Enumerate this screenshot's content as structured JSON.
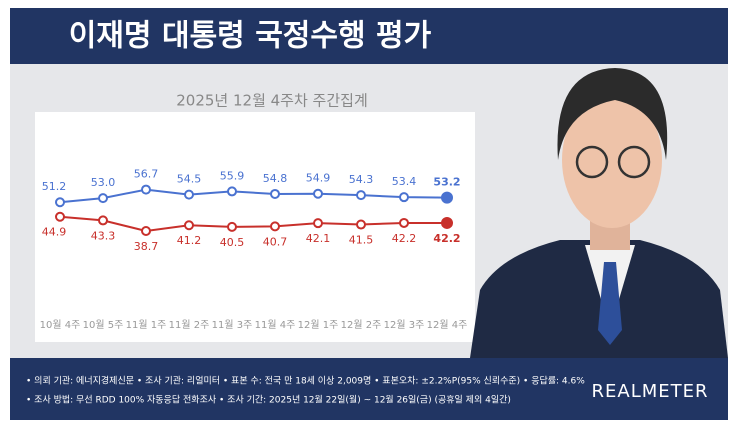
{
  "chart_data": {
    "type": "line",
    "title": "이재명 대통령 국정수행 평가",
    "subtitle": "2025년 12월 4주차 주간집계",
    "categories": [
      "10월 4주",
      "10월 5주",
      "11월 1주",
      "11월 2주",
      "11월 3주",
      "11월 4주",
      "12월 1주",
      "12월 2주",
      "12월 3주",
      "12월 4주"
    ],
    "series": [
      {
        "color": "#4a72d0",
        "values": [
          51.2,
          53.0,
          56.7,
          54.5,
          55.9,
          54.8,
          54.9,
          54.3,
          53.4,
          53.2
        ],
        "value_labels": [
          "51.2",
          "53.0",
          "56.7",
          "54.5",
          "55.9",
          "54.8",
          "54.9",
          "54.3",
          "53.4",
          "53.2"
        ]
      },
      {
        "color": "#c8302b",
        "values": [
          44.9,
          43.3,
          38.7,
          41.2,
          40.5,
          40.7,
          42.1,
          41.5,
          42.2,
          42.2
        ],
        "value_labels": [
          "44.9",
          "43.3",
          "38.7",
          "41.2",
          "40.5",
          "40.7",
          "42.1",
          "41.5",
          "42.2",
          "42.2"
        ]
      }
    ],
    "notes": [
      "• 의뢰 기관: 에너지경제신문 • 조사 기관: 리얼미터 • 표본 수: 전국 만 18세 이상 2,009명 • 표본오차: ±2.2%P(95% 신뢰수준) • 응답률: 4.6%",
      "• 조사 방법: 무선 RDD 100% 자동응답 전화조사 • 조사 기간: 2025년 12월 22일(월) ~ 12월 26일(금) (공휴일 제외 4일간)"
    ],
    "logo": "REALMETER"
  }
}
